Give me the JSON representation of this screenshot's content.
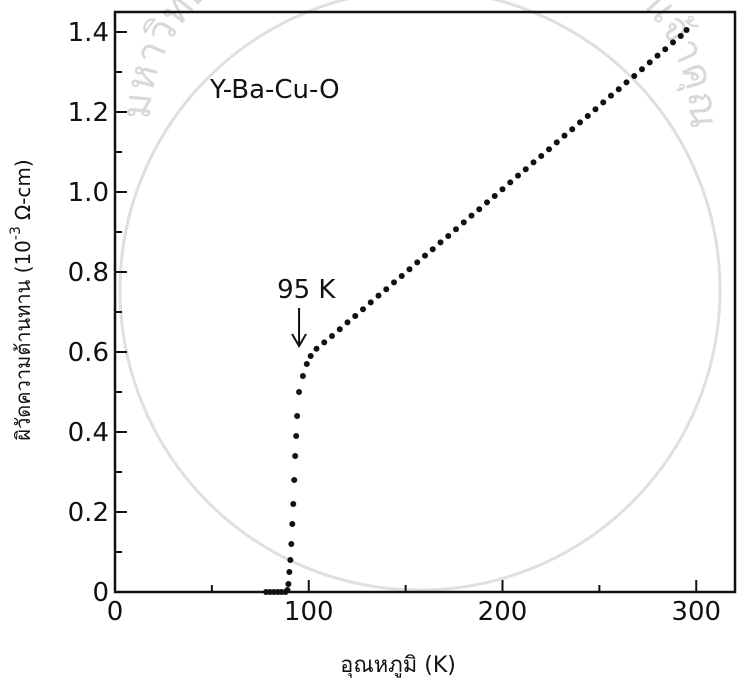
{
  "chart_data": {
    "type": "scatter",
    "title": "",
    "annotation": "Y-Ba-Cu-O",
    "xlabel": "อุณหภูมิ (K)",
    "ylabel": "ผิวัดความต้านทาน (10⁻³ Ω-cm)",
    "ylabel_main": "ผิวัดความต้านทาน (10",
    "ylabel_exp": "-3",
    "ylabel_unit": "Ω-cm)",
    "xlim": [
      0,
      320
    ],
    "ylim": [
      0,
      1.45
    ],
    "x_ticks": [
      0,
      100,
      200,
      300
    ],
    "x_tick_labels": [
      "0",
      "100",
      "200",
      "300"
    ],
    "y_ticks": [
      0,
      0.2,
      0.4,
      0.6,
      0.8,
      1.0,
      1.2,
      1.4
    ],
    "y_tick_labels": [
      "0",
      "0.2",
      "0.4",
      "0.6",
      "0.8",
      "1.0",
      "1.2",
      "1.4"
    ],
    "arrow_label": "95 K",
    "arrow_x": 95,
    "arrow_target_y": 0.6,
    "grid": false,
    "series": [
      {
        "x": [
          78,
          80,
          82,
          84,
          86,
          88,
          89,
          89.5,
          90,
          90.5,
          91,
          91.5,
          92,
          92.5,
          93,
          93.5,
          94,
          95,
          97,
          99,
          101,
          104,
          108,
          112,
          116,
          120,
          124,
          128,
          132,
          136,
          140,
          144,
          148,
          152,
          156,
          160,
          164,
          168,
          172,
          176,
          180,
          184,
          188,
          192,
          196,
          200,
          204,
          208,
          212,
          216,
          220,
          224,
          228,
          232,
          236,
          240,
          244,
          248,
          252,
          256,
          260,
          264,
          268,
          272,
          276,
          280,
          284,
          288,
          292,
          295
        ],
        "y": [
          0,
          0,
          0,
          0,
          0,
          0,
          0.005,
          0.02,
          0.05,
          0.08,
          0.12,
          0.17,
          0.22,
          0.28,
          0.34,
          0.39,
          0.44,
          0.5,
          0.54,
          0.57,
          0.59,
          0.608,
          0.624,
          0.64,
          0.657,
          0.674,
          0.69,
          0.707,
          0.724,
          0.741,
          0.757,
          0.774,
          0.79,
          0.807,
          0.824,
          0.841,
          0.857,
          0.874,
          0.89,
          0.907,
          0.924,
          0.941,
          0.957,
          0.974,
          0.99,
          1.007,
          1.024,
          1.041,
          1.057,
          1.074,
          1.09,
          1.107,
          1.124,
          1.141,
          1.157,
          1.174,
          1.19,
          1.207,
          1.224,
          1.241,
          1.257,
          1.274,
          1.29,
          1.307,
          1.324,
          1.341,
          1.357,
          1.374,
          1.39,
          1.405
        ]
      }
    ]
  },
  "watermark": {
    "text": "มหาวิทยาลัยเทคโนโลยีพระจอมเกล้าเจ้าคุณทหารลาดกระบัง"
  }
}
